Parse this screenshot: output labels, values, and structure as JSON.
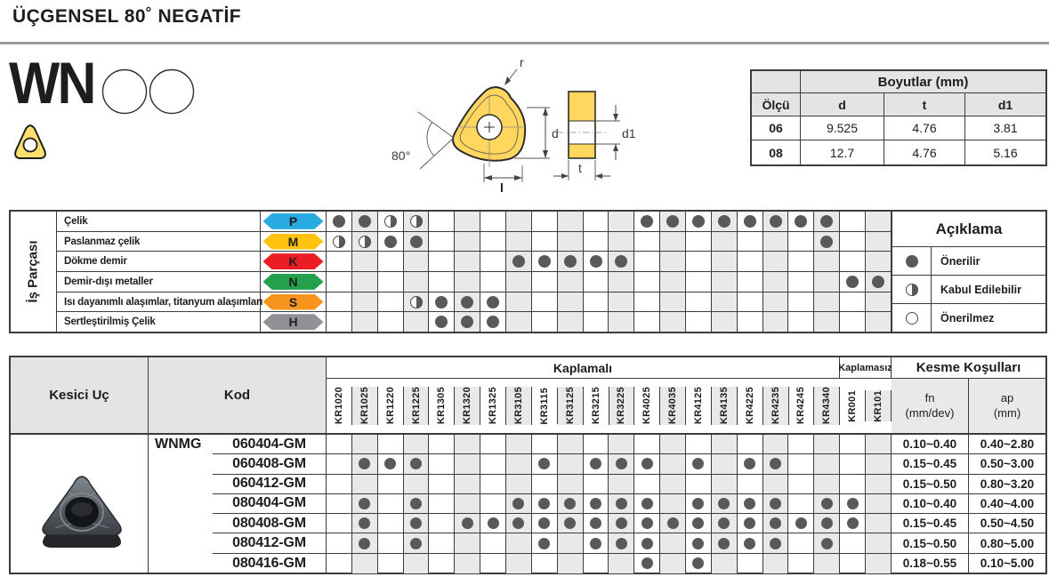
{
  "header": {
    "title": "ÜÇGENSEL 80˚ NEGATİF"
  },
  "designation": {
    "code": "WN"
  },
  "drawing": {
    "r": "r",
    "angle": "80°",
    "d": "d",
    "l": "l",
    "t": "t",
    "d1": "d1"
  },
  "dimensions": {
    "group_header": "Boyutlar (mm)",
    "columns": [
      "Ölçü",
      "d",
      "t",
      "d1"
    ],
    "rows": [
      {
        "size": "06",
        "d": "9.525",
        "t": "4.76",
        "d1": "3.81"
      },
      {
        "size": "08",
        "d": "12.7",
        "t": "4.76",
        "d1": "5.16"
      }
    ]
  },
  "grades": [
    "KR1020",
    "KR1025",
    "KR1220",
    "KR1225",
    "KR1305",
    "KR1320",
    "KR1325",
    "KR3105",
    "KR3115",
    "KR3125",
    "KR3215",
    "KR3225",
    "KR4025",
    "KR4035",
    "KR4125",
    "KR4135",
    "KR4225",
    "KR4235",
    "KR4245",
    "KR4340",
    "KR001",
    "KR101"
  ],
  "material_matrix": {
    "side_label": "İş Parçası",
    "rows": [
      {
        "name": "Çelik",
        "letter": "P",
        "color": "#29abe2",
        "full": [
          "KR1020",
          "KR1025",
          "KR4025",
          "KR4035",
          "KR4125",
          "KR4135",
          "KR4225",
          "KR4235",
          "KR4245",
          "KR4340"
        ],
        "half": [
          "KR1220",
          "KR1225"
        ]
      },
      {
        "name": "Paslanmaz çelik",
        "letter": "M",
        "color": "#ffc20e",
        "full": [
          "KR1220",
          "KR1225",
          "KR4340"
        ],
        "half": [
          "KR1020",
          "KR1025"
        ]
      },
      {
        "name": "Dökme demir",
        "letter": "K",
        "color": "#ec1c24",
        "full": [
          "KR3105",
          "KR3115",
          "KR3125",
          "KR3215",
          "KR3225"
        ],
        "half": []
      },
      {
        "name": "Demir-dışı metaller",
        "letter": "N",
        "color": "#22a04b",
        "full": [
          "KR001",
          "KR101"
        ],
        "half": []
      },
      {
        "name": "Isı dayanımlı alaşımlar, titanyum alaşımları",
        "letter": "S",
        "color": "#f7941e",
        "full": [
          "KR1305",
          "KR1320",
          "KR1325"
        ],
        "half": [
          "KR1225"
        ]
      },
      {
        "name": "Sertleştirilmiş Çelik",
        "letter": "H",
        "color": "#8f9194",
        "full": [
          "KR1305",
          "KR1320",
          "KR1325"
        ],
        "half": []
      }
    ]
  },
  "legend": {
    "title": "Açıklama",
    "items": [
      {
        "symbol": "full",
        "label": "Önerilir"
      },
      {
        "symbol": "half",
        "label": "Kabul Edilebilir"
      },
      {
        "symbol": "empty",
        "label": "Önerilmez"
      }
    ]
  },
  "products": {
    "insert_header": "Kesici Uç",
    "code_header": "Kod",
    "coated_header": "Kaplamalı",
    "uncoated_header": "Kaplamasız",
    "cutting_header": "Kesme Koşulları",
    "fn_header": "fn",
    "fn_unit": "(mm/dev)",
    "ap_header": "ap",
    "ap_unit": "(mm)",
    "series": "WNMG",
    "rows": [
      {
        "code": "060404-GM",
        "dots": [],
        "fn": "0.10~0.40",
        "ap": "0.40~2.80"
      },
      {
        "code": "060408-GM",
        "dots": [
          "KR1025",
          "KR1220",
          "KR1225",
          "KR3115",
          "KR3215",
          "KR3225",
          "KR4025",
          "KR4125",
          "KR4225",
          "KR4235"
        ],
        "fn": "0.15~0.45",
        "ap": "0.50~3.00"
      },
      {
        "code": "060412-GM",
        "dots": [],
        "fn": "0.15~0.50",
        "ap": "0.80~3.20"
      },
      {
        "code": "080404-GM",
        "dots": [
          "KR1025",
          "KR1225",
          "KR3105",
          "KR3115",
          "KR3125",
          "KR3215",
          "KR3225",
          "KR4025",
          "KR4125",
          "KR4135",
          "KR4225",
          "KR4235",
          "KR4340",
          "KR001"
        ],
        "fn": "0.10~0.40",
        "ap": "0.40~4.00"
      },
      {
        "code": "080408-GM",
        "dots": [
          "KR1025",
          "KR1225",
          "KR1320",
          "KR1325",
          "KR3105",
          "KR3115",
          "KR3125",
          "KR3215",
          "KR3225",
          "KR4025",
          "KR4035",
          "KR4125",
          "KR4135",
          "KR4225",
          "KR4235",
          "KR4245",
          "KR4340",
          "KR001"
        ],
        "fn": "0.15~0.45",
        "ap": "0.50~4.50"
      },
      {
        "code": "080412-GM",
        "dots": [
          "KR1025",
          "KR1225",
          "KR3115",
          "KR3215",
          "KR3225",
          "KR4025",
          "KR4125",
          "KR4135",
          "KR4225",
          "KR4235",
          "KR4340"
        ],
        "fn": "0.15~0.50",
        "ap": "0.80~5.00"
      },
      {
        "code": "080416-GM",
        "dots": [
          "KR4025",
          "KR4125"
        ],
        "fn": "0.18~0.55",
        "ap": "0.10~5.00"
      }
    ]
  }
}
